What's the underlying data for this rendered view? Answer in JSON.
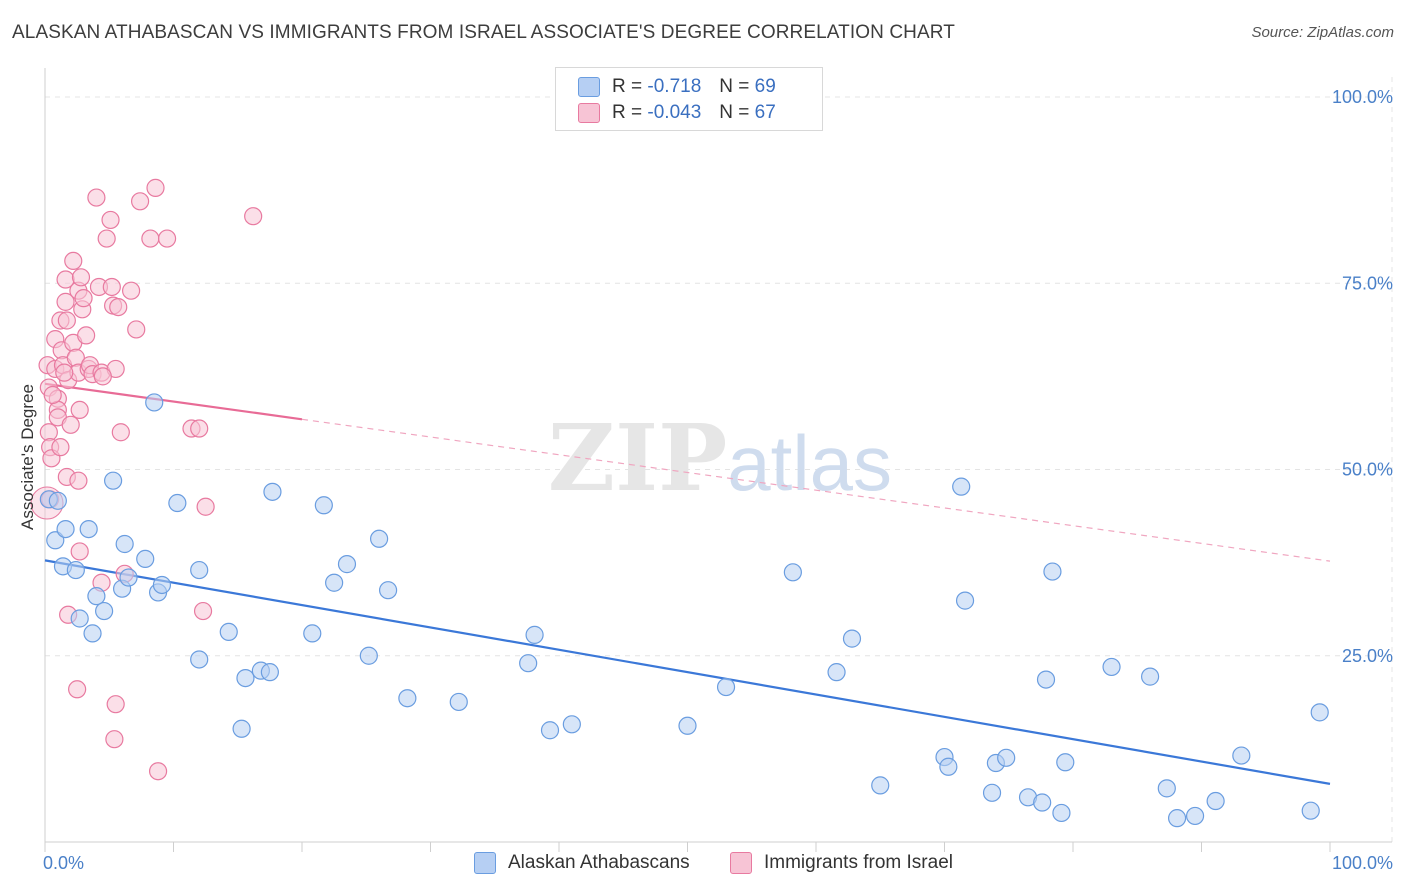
{
  "chart_data": {
    "type": "scatter",
    "title": "ALASKAN ATHABASCAN VS IMMIGRANTS FROM ISRAEL ASSOCIATE'S DEGREE CORRELATION CHART",
    "source": "Source: ZipAtlas.com",
    "ylabel": "Associate's Degree",
    "xlabel": "",
    "xlim": [
      0,
      100
    ],
    "ylim": [
      0,
      100
    ],
    "x_tick_labels": [
      "0.0%",
      "100.0%"
    ],
    "y_tick_labels": [
      "100.0%",
      "75.0%",
      "50.0%",
      "25.0%"
    ],
    "y_tick_values": [
      100,
      75,
      50,
      25
    ],
    "watermark": "ZIPatlas",
    "legend": {
      "rows": [
        {
          "r_label": "R =",
          "r_value": "-0.718",
          "n_label": "N =",
          "n_value": "69"
        },
        {
          "r_label": "R =",
          "r_value": "-0.043",
          "n_label": "N =",
          "n_value": "67"
        }
      ]
    },
    "series": [
      {
        "name": "Alaskan Athabascans",
        "color": "#6a9de0",
        "fill": "#b6cff3",
        "trend": {
          "x": [
            0,
            100
          ],
          "y": [
            37.8,
            7.8
          ],
          "dashed_from": null
        },
        "points": [
          [
            0.3,
            46
          ],
          [
            0.8,
            40.5
          ],
          [
            1.6,
            42
          ],
          [
            1.4,
            37
          ],
          [
            2.4,
            36.5
          ],
          [
            3.4,
            42
          ],
          [
            2.7,
            30
          ],
          [
            3.7,
            28
          ],
          [
            4.0,
            33
          ],
          [
            4.6,
            31
          ],
          [
            5.3,
            48.5
          ],
          [
            6.0,
            34
          ],
          [
            6.2,
            40
          ],
          [
            6.5,
            35.5
          ],
          [
            7.8,
            38
          ],
          [
            8.5,
            59
          ],
          [
            8.8,
            33.5
          ],
          [
            9.1,
            34.5
          ],
          [
            10.3,
            45.5
          ],
          [
            12.0,
            36.5
          ],
          [
            12.0,
            24.5
          ],
          [
            14.3,
            28.2
          ],
          [
            15.3,
            15.2
          ],
          [
            15.6,
            22
          ],
          [
            16.8,
            23
          ],
          [
            17.5,
            22.8
          ],
          [
            17.7,
            47
          ],
          [
            20.8,
            28
          ],
          [
            21.7,
            45.2
          ],
          [
            22.5,
            34.8
          ],
          [
            23.5,
            37.3
          ],
          [
            25.2,
            25
          ],
          [
            26.0,
            40.7
          ],
          [
            26.7,
            33.8
          ],
          [
            28.2,
            19.3
          ],
          [
            32.2,
            18.8
          ],
          [
            37.6,
            24
          ],
          [
            38.1,
            27.8
          ],
          [
            39.3,
            15
          ],
          [
            41.0,
            15.8
          ],
          [
            50.0,
            15.6
          ],
          [
            53.0,
            20.8
          ],
          [
            58.2,
            36.2
          ],
          [
            61.6,
            22.8
          ],
          [
            62.8,
            27.3
          ],
          [
            65.0,
            7.6
          ],
          [
            70.0,
            11.4
          ],
          [
            70.3,
            10.1
          ],
          [
            71.3,
            47.7
          ],
          [
            71.6,
            32.4
          ],
          [
            73.7,
            6.6
          ],
          [
            74.0,
            10.6
          ],
          [
            74.8,
            11.3
          ],
          [
            76.5,
            6
          ],
          [
            77.6,
            5.3
          ],
          [
            77.9,
            21.8
          ],
          [
            78.4,
            36.3
          ],
          [
            79.1,
            3.9
          ],
          [
            79.4,
            10.7
          ],
          [
            83.0,
            23.5
          ],
          [
            86.0,
            22.2
          ],
          [
            87.3,
            7.2
          ],
          [
            88.1,
            3.2
          ],
          [
            89.5,
            3.5
          ],
          [
            91.1,
            5.5
          ],
          [
            93.1,
            11.6
          ],
          [
            98.5,
            4.2
          ],
          [
            99.2,
            17.4
          ],
          [
            1.0,
            45.8
          ]
        ]
      },
      {
        "name": "Immigrants from Israel",
        "color": "#e87aa0",
        "fill": "#f7c4d5",
        "trend": {
          "x": [
            0,
            100
          ],
          "y": [
            61.5,
            37.7
          ],
          "solid_to": 20
        },
        "points": [
          [
            0.2,
            64
          ],
          [
            0.3,
            61
          ],
          [
            0.3,
            55
          ],
          [
            0.4,
            53
          ],
          [
            0.5,
            51.5
          ],
          [
            0.4,
            46
          ],
          [
            0.8,
            67.5
          ],
          [
            0.8,
            63.5
          ],
          [
            1.0,
            59.5
          ],
          [
            1.0,
            58
          ],
          [
            1.0,
            57
          ],
          [
            1.2,
            70
          ],
          [
            1.3,
            66
          ],
          [
            1.4,
            64
          ],
          [
            1.2,
            53
          ],
          [
            1.6,
            75.5
          ],
          [
            1.6,
            72.5
          ],
          [
            1.7,
            70
          ],
          [
            1.8,
            62
          ],
          [
            1.7,
            49
          ],
          [
            1.8,
            30.5
          ],
          [
            2.2,
            78
          ],
          [
            2.2,
            67
          ],
          [
            2.4,
            65
          ],
          [
            2.6,
            74
          ],
          [
            2.6,
            63
          ],
          [
            2.7,
            58
          ],
          [
            2.6,
            48.5
          ],
          [
            2.7,
            39
          ],
          [
            2.5,
            20.5
          ],
          [
            2.8,
            75.8
          ],
          [
            2.9,
            71.5
          ],
          [
            3.2,
            68
          ],
          [
            3.4,
            63.5
          ],
          [
            3.5,
            64
          ],
          [
            3.7,
            62.8
          ],
          [
            4.0,
            86.5
          ],
          [
            4.2,
            74.5
          ],
          [
            4.4,
            63
          ],
          [
            4.4,
            34.8
          ],
          [
            4.8,
            81
          ],
          [
            5.1,
            83.5
          ],
          [
            5.2,
            74.5
          ],
          [
            5.3,
            72
          ],
          [
            5.5,
            63.5
          ],
          [
            5.5,
            18.5
          ],
          [
            5.4,
            13.8
          ],
          [
            5.7,
            71.8
          ],
          [
            5.9,
            55
          ],
          [
            6.2,
            36
          ],
          [
            6.7,
            74
          ],
          [
            7.1,
            68.8
          ],
          [
            7.4,
            86
          ],
          [
            8.2,
            81
          ],
          [
            8.6,
            87.8
          ],
          [
            8.8,
            9.5
          ],
          [
            9.5,
            81
          ],
          [
            11.4,
            55.5
          ],
          [
            12.0,
            55.5
          ],
          [
            12.3,
            31
          ],
          [
            12.5,
            45
          ],
          [
            16.2,
            84
          ],
          [
            0.6,
            60
          ],
          [
            1.5,
            63
          ],
          [
            3.0,
            73
          ],
          [
            4.5,
            62.5
          ],
          [
            2.0,
            56
          ]
        ]
      }
    ]
  },
  "bottom_legend": [
    "Alaskan Athabascans",
    "Immigrants from Israel"
  ],
  "colors": {
    "blue": "#3b78d8",
    "pink": "#e86b96",
    "tick_text": "#4a80c8",
    "grid": "#e3e3e3"
  }
}
